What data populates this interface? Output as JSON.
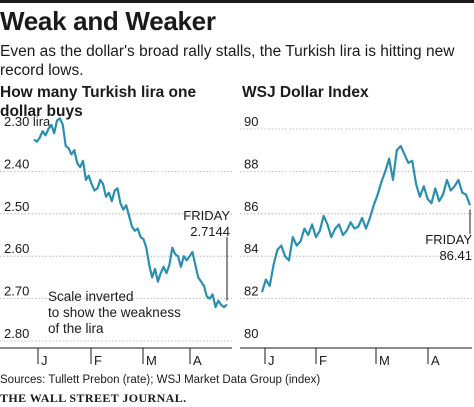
{
  "header": {
    "title": "Weak and Weaker",
    "subtitle": "Even as the dollar's broad rally stalls, the Turkish lira is hitting new record lows."
  },
  "footer": {
    "sources": "Sources: Tullett Prebon (rate); WSJ Market Data Group (index)",
    "brand": "THE WALL STREET JOURNAL."
  },
  "colors": {
    "line": "#2a8fb0",
    "text": "#1a1a1a",
    "grid": "#aaaaaa"
  },
  "chart_data": [
    {
      "type": "line",
      "title": "How many Turkish lira one dollar buys",
      "y_unit": "lira",
      "y_inverted": true,
      "ylim": [
        2.8,
        2.3
      ],
      "y_ticks": [
        2.3,
        2.4,
        2.5,
        2.6,
        2.7,
        2.8
      ],
      "y_tick_labels": [
        "2.30 lira",
        "2.40",
        "2.50",
        "2.60",
        "2.70",
        "2.80"
      ],
      "x_ticks": [
        "J",
        "F",
        "M",
        "A"
      ],
      "annotations": {
        "last_label": "FRIDAY",
        "last_value": "2.7144",
        "note": "Scale inverted to show the weakness of the lira"
      },
      "values": [
        2.325,
        2.33,
        2.32,
        2.305,
        2.315,
        2.3,
        2.29,
        2.31,
        2.28,
        2.275,
        2.29,
        2.34,
        2.345,
        2.36,
        2.35,
        2.38,
        2.39,
        2.375,
        2.42,
        2.41,
        2.43,
        2.445,
        2.44,
        2.42,
        2.43,
        2.46,
        2.45,
        2.47,
        2.445,
        2.44,
        2.475,
        2.49,
        2.48,
        2.505,
        2.53,
        2.54,
        2.535,
        2.555,
        2.56,
        2.58,
        2.62,
        2.65,
        2.63,
        2.66,
        2.64,
        2.625,
        2.64,
        2.62,
        2.58,
        2.595,
        2.6,
        2.625,
        2.6,
        2.61,
        2.6,
        2.59,
        2.62,
        2.65,
        2.66,
        2.67,
        2.695,
        2.7,
        2.69,
        2.72,
        2.705,
        2.715,
        2.72,
        2.714
      ]
    },
    {
      "type": "line",
      "title": "WSJ Dollar Index",
      "ylim": [
        80,
        90
      ],
      "y_ticks": [
        80,
        82,
        84,
        86,
        88,
        90
      ],
      "y_tick_labels": [
        "80",
        "82",
        "84",
        "86",
        "88",
        "90"
      ],
      "x_ticks": [
        "J",
        "F",
        "M",
        "A"
      ],
      "annotations": {
        "last_label": "FRIDAY",
        "last_value": "86.41"
      },
      "values": [
        82.3,
        82.9,
        82.6,
        83.6,
        84.3,
        84.5,
        84.0,
        83.8,
        84.9,
        84.5,
        84.7,
        85.3,
        85.0,
        85.5,
        84.9,
        85.2,
        85.9,
        85.5,
        84.9,
        85.3,
        85.5,
        85.0,
        85.2,
        85.6,
        85.3,
        85.4,
        85.8,
        85.3,
        85.8,
        86.4,
        86.9,
        87.5,
        88.0,
        88.6,
        87.6,
        89.0,
        89.2,
        88.8,
        88.4,
        88.5,
        87.4,
        86.8,
        87.3,
        86.7,
        86.5,
        87.2,
        86.6,
        86.9,
        87.6,
        87.1,
        87.3,
        87.6,
        87.0,
        86.9,
        86.4
      ]
    }
  ]
}
